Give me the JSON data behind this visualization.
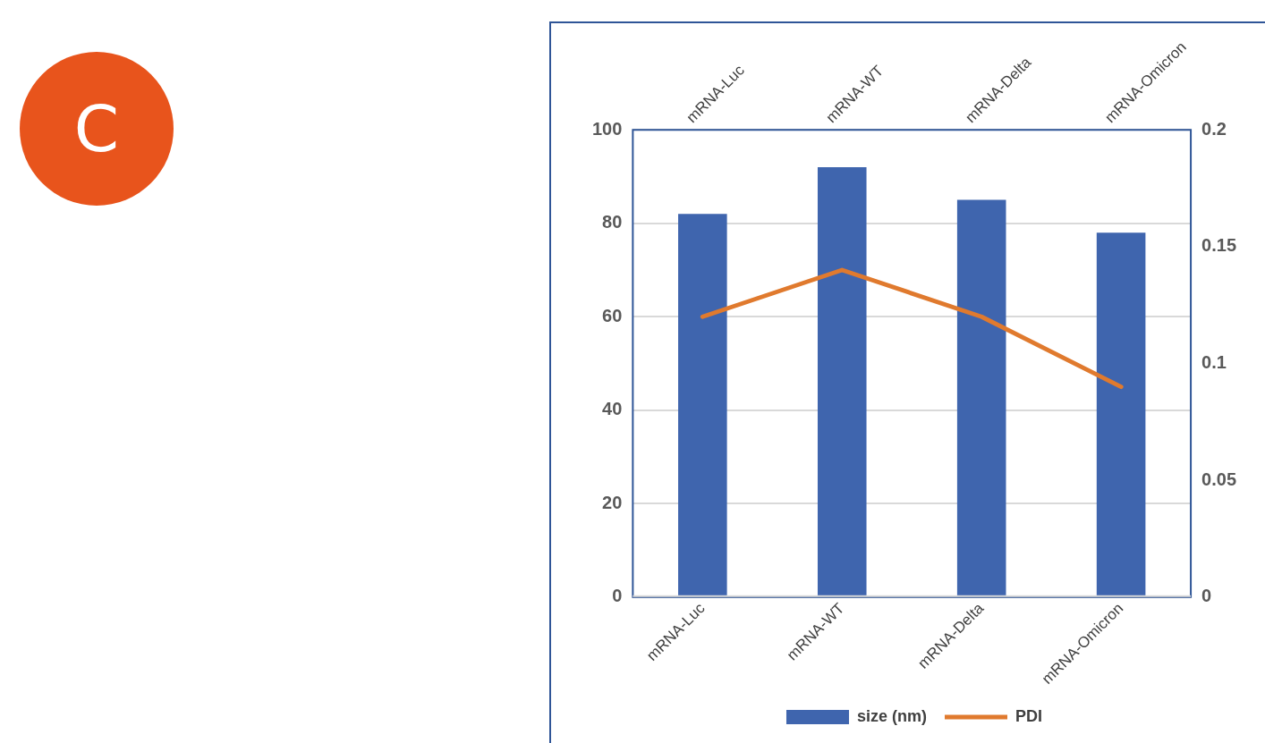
{
  "chart_data": {
    "type": "bar",
    "categories": [
      "mRNA-Luc",
      "mRNA-WT",
      "mRNA-Delta",
      "mRNA-Omicron"
    ],
    "series": [
      {
        "name": "size (nm)",
        "color": "#3f65ae",
        "values": [
          82,
          92,
          85,
          78
        ]
      },
      {
        "name": "PDI",
        "type": "line",
        "axis": "y2",
        "color": "#e07a2e",
        "values": [
          0.12,
          0.14,
          0.12,
          0.09
        ]
      }
    ],
    "ylim": [
      0,
      100
    ],
    "yticks": [
      0,
      20,
      40,
      60,
      80,
      100
    ],
    "y2lim": [
      0,
      0.2
    ],
    "y2ticks": [
      0,
      0.05,
      0.1,
      0.15,
      0.2
    ],
    "grid": "y",
    "legend": "bottom",
    "marker": "none",
    "line_style": "solid",
    "annotations": [
      "C"
    ]
  }
}
